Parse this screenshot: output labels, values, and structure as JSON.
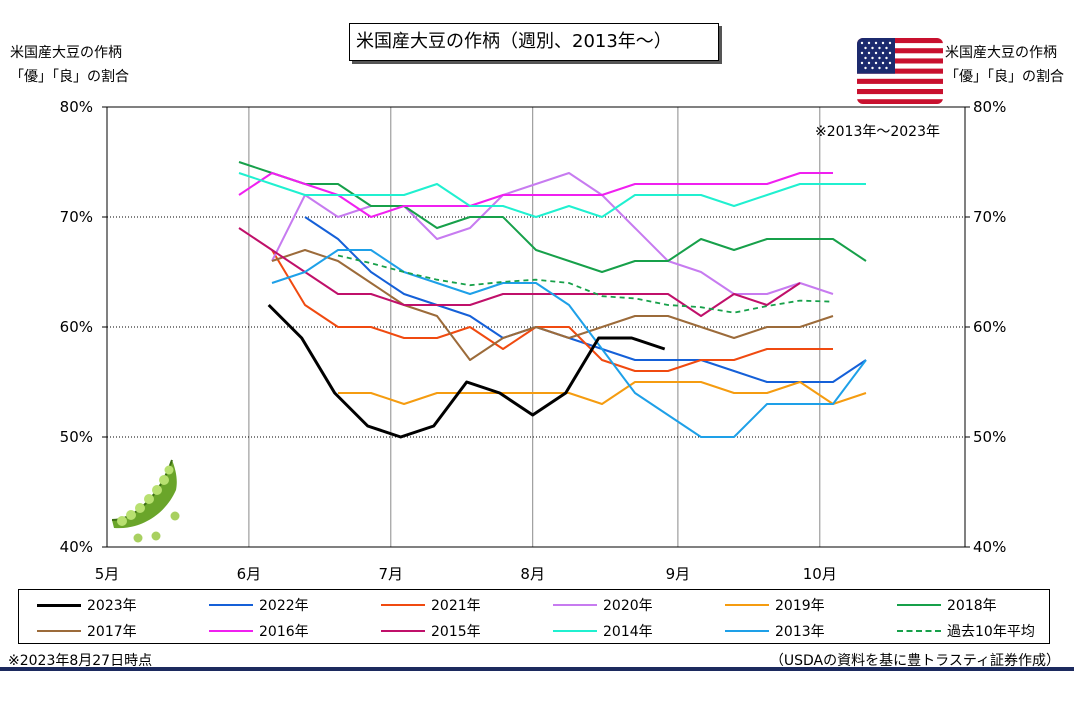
{
  "header": {
    "title": "米国産大豆の作柄（週別、2013年～）",
    "left_axis_label_line1": "米国産大豆の作柄",
    "left_axis_label_line2": "「優」「良」の割合",
    "right_axis_label_line1": "米国産大豆の作柄",
    "right_axis_label_line2": "「優」「良」の割合",
    "avg_note": "※2013年～2023年"
  },
  "footer": {
    "left_note": "※2023年8月27日時点",
    "source": "（USDAの資料を基に豊トラスティ証券作成）"
  },
  "icons": [
    "us-flag-icon",
    "soybean-pod-icon"
  ],
  "chart_data": {
    "type": "line",
    "x_tick_labels": [
      "5月",
      "6月",
      "7月",
      "8月",
      "9月",
      "10月"
    ],
    "x_tick_weeks": [
      0,
      4.3,
      8.6,
      12.9,
      17.3,
      21.6
    ],
    "y_tick_labels": [
      "40%",
      "50%",
      "60%",
      "70%",
      "80%"
    ],
    "y_ticks": [
      40,
      50,
      60,
      70,
      80
    ],
    "ylim": [
      40,
      80
    ],
    "xlim": [
      0,
      26
    ],
    "grid": {
      "vertical_solid_at_month_ticks": true,
      "horizontal_dotted": [
        50,
        60,
        70
      ]
    },
    "legend_placement": "bottom",
    "series": [
      {
        "name": "2023年",
        "color": "#000000",
        "width": 3,
        "dash": "",
        "x": [
          4.9,
          5.9,
          6.9,
          7.9,
          8.9,
          9.9,
          10.9,
          11.9,
          12.9,
          13.9,
          14.9,
          15.9,
          16.9
        ],
        "values": [
          62,
          59,
          54,
          51,
          50,
          51,
          55,
          54,
          52,
          54,
          59,
          59,
          58
        ]
      },
      {
        "name": "2022年",
        "color": "#1560d8",
        "width": 2,
        "dash": "",
        "x": [
          6.0,
          7.0,
          8.0,
          9.0,
          10.0,
          11.0,
          12.0,
          13.0,
          14.0,
          15.0,
          16.0,
          17.0,
          18.0,
          19.0,
          20.0,
          21.0,
          22.0,
          23.0
        ],
        "values": [
          70,
          68,
          65,
          63,
          62,
          61,
          59,
          60,
          59,
          58,
          57,
          57,
          57,
          56,
          55,
          55,
          55,
          57
        ]
      },
      {
        "name": "2021年",
        "color": "#f04a10",
        "width": 2,
        "dash": "",
        "x": [
          5.0,
          6.0,
          7.0,
          8.0,
          9.0,
          10.0,
          11.0,
          12.0,
          13.0,
          14.0,
          15.0,
          16.0,
          17.0,
          18.0,
          19.0,
          20.0,
          21.0,
          22.0
        ],
        "values": [
          67,
          62,
          60,
          60,
          59,
          59,
          60,
          58,
          60,
          60,
          57,
          56,
          56,
          57,
          57,
          58,
          58,
          58
        ]
      },
      {
        "name": "2020年",
        "color": "#c77bf0",
        "width": 2,
        "dash": "",
        "x": [
          5.0,
          6.0,
          7.0,
          8.0,
          9.0,
          10.0,
          11.0,
          12.0,
          13.0,
          14.0,
          15.0,
          16.0,
          17.0,
          18.0,
          19.0,
          20.0,
          21.0,
          22.0
        ],
        "values": [
          66,
          72,
          70,
          71,
          71,
          68,
          69,
          72,
          73,
          74,
          72,
          69,
          66,
          65,
          63,
          63,
          64,
          63
        ]
      },
      {
        "name": "2019年",
        "color": "#f59c10",
        "width": 2,
        "dash": "",
        "x": [
          7.0,
          8.0,
          9.0,
          10.0,
          11.0,
          12.0,
          13.0,
          14.0,
          15.0,
          16.0,
          17.0,
          18.0,
          19.0,
          20.0,
          21.0,
          22.0,
          23.0
        ],
        "values": [
          54,
          54,
          53,
          54,
          54,
          54,
          54,
          54,
          53,
          55,
          55,
          55,
          54,
          54,
          55,
          53,
          54
        ]
      },
      {
        "name": "2018年",
        "color": "#17a04a",
        "width": 2,
        "dash": "",
        "x": [
          4.0,
          5.0,
          6.0,
          7.0,
          8.0,
          9.0,
          10.0,
          11.0,
          12.0,
          13.0,
          14.0,
          15.0,
          16.0,
          17.0,
          18.0,
          19.0,
          20.0,
          21.0,
          22.0,
          23.0
        ],
        "values": [
          75,
          74,
          73,
          73,
          71,
          71,
          69,
          70,
          70,
          67,
          66,
          65,
          66,
          66,
          68,
          67,
          68,
          68,
          68,
          66
        ]
      },
      {
        "name": "2017年",
        "color": "#9c6b3a",
        "width": 2,
        "dash": "",
        "x": [
          5.0,
          6.0,
          7.0,
          8.0,
          9.0,
          10.0,
          11.0,
          12.0,
          13.0,
          14.0,
          15.0,
          16.0,
          17.0,
          18.0,
          19.0,
          20.0,
          21.0,
          22.0
        ],
        "values": [
          66,
          67,
          66,
          64,
          62,
          61,
          57,
          59,
          60,
          59,
          60,
          61,
          61,
          60,
          59,
          60,
          60,
          61
        ]
      },
      {
        "name": "2016年",
        "color": "#f020f0",
        "width": 2,
        "dash": "",
        "x": [
          4.0,
          5.0,
          6.0,
          7.0,
          8.0,
          9.0,
          10.0,
          11.0,
          12.0,
          13.0,
          14.0,
          15.0,
          16.0,
          17.0,
          18.0,
          19.0,
          20.0,
          21.0,
          22.0
        ],
        "values": [
          72,
          74,
          73,
          72,
          70,
          71,
          71,
          71,
          72,
          72,
          72,
          72,
          73,
          73,
          73,
          73,
          73,
          74,
          74
        ]
      },
      {
        "name": "2015年",
        "color": "#c0106a",
        "width": 2,
        "dash": "",
        "x": [
          4.0,
          5.0,
          6.0,
          7.0,
          8.0,
          9.0,
          10.0,
          11.0,
          12.0,
          13.0,
          14.0,
          15.0,
          16.0,
          17.0,
          18.0,
          19.0,
          20.0,
          21.0
        ],
        "values": [
          69,
          67,
          65,
          63,
          63,
          62,
          62,
          62,
          63,
          63,
          63,
          63,
          63,
          63,
          61,
          63,
          62,
          64
        ]
      },
      {
        "name": "2014年",
        "color": "#20f0d0",
        "width": 2,
        "dash": "",
        "x": [
          4.0,
          5.0,
          6.0,
          7.0,
          8.0,
          9.0,
          10.0,
          11.0,
          12.0,
          13.0,
          14.0,
          15.0,
          16.0,
          17.0,
          18.0,
          19.0,
          20.0,
          21.0,
          22.0,
          23.0
        ],
        "values": [
          74,
          73,
          72,
          72,
          72,
          72,
          73,
          71,
          71,
          70,
          71,
          70,
          72,
          72,
          72,
          71,
          72,
          73,
          73,
          73
        ]
      },
      {
        "name": "2013年",
        "color": "#1ea0e8",
        "width": 2,
        "dash": "",
        "x": [
          5.0,
          6.0,
          7.0,
          8.0,
          9.0,
          10.0,
          11.0,
          12.0,
          13.0,
          14.0,
          15.0,
          16.0,
          17.0,
          18.0,
          19.0,
          20.0,
          21.0,
          22.0,
          23.0
        ],
        "values": [
          64,
          65,
          67,
          67,
          65,
          64,
          63,
          64,
          64,
          62,
          58,
          54,
          52,
          50,
          50,
          53,
          53,
          53,
          57
        ]
      },
      {
        "name": "過去10年平均",
        "color": "#17a04a",
        "width": 1.8,
        "dash": "5,4",
        "x": [
          7.0,
          8.0,
          9.0,
          10.0,
          11.0,
          12.0,
          13.0,
          14.0,
          15.0,
          16.0,
          17.0,
          18.0,
          19.0,
          20.0,
          21.0,
          22.0
        ],
        "values": [
          66.5,
          65.8,
          65.0,
          64.3,
          63.8,
          64.1,
          64.3,
          64.0,
          62.8,
          62.6,
          62.0,
          61.8,
          61.3,
          61.9,
          62.4,
          62.3
        ]
      }
    ]
  }
}
